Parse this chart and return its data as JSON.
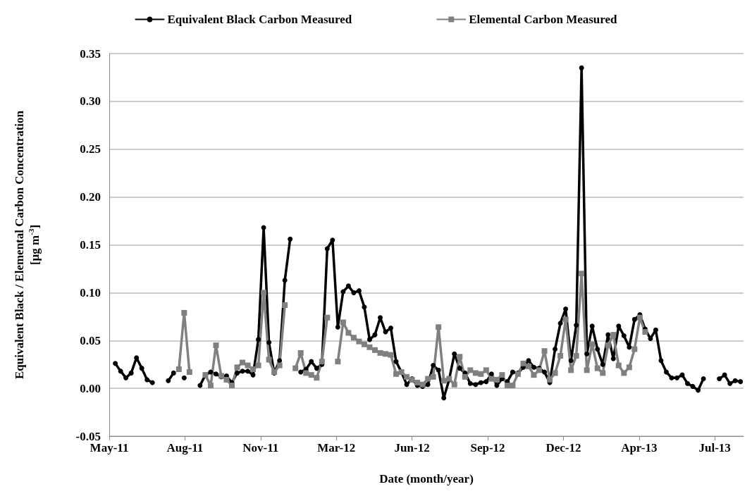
{
  "chart_data": {
    "type": "line",
    "xlabel": "Date (month/year)",
    "ylabel": "Equivalent Black / Elemental Carbon Concentration\n[µg m$^{-3}$]",
    "x": [
      "2011-05-16",
      "2011-05-23",
      "2011-05-30",
      "2011-06-06",
      "2011-06-13",
      "2011-06-20",
      "2011-06-27",
      "2011-07-04",
      "2011-07-11",
      "2011-07-18",
      "2011-07-25",
      "2011-08-01",
      "2011-08-08",
      "2011-08-15",
      "2011-08-22",
      "2011-08-29",
      "2011-09-05",
      "2011-09-12",
      "2011-09-19",
      "2011-09-26",
      "2011-10-03",
      "2011-10-10",
      "2011-10-17",
      "2011-10-24",
      "2011-10-31",
      "2011-11-07",
      "2011-11-14",
      "2011-11-21",
      "2011-11-28",
      "2011-12-05",
      "2011-12-12",
      "2011-12-19",
      "2011-12-26",
      "2012-01-02",
      "2012-01-09",
      "2012-01-16",
      "2012-01-23",
      "2012-01-30",
      "2012-02-06",
      "2012-02-13",
      "2012-02-20",
      "2012-02-27",
      "2012-03-05",
      "2012-03-12",
      "2012-03-19",
      "2012-03-26",
      "2012-04-02",
      "2012-04-09",
      "2012-04-16",
      "2012-04-23",
      "2012-04-30",
      "2012-05-07",
      "2012-05-14",
      "2012-05-21",
      "2012-05-28",
      "2012-06-04",
      "2012-06-11",
      "2012-06-18",
      "2012-06-25",
      "2012-07-02",
      "2012-07-09",
      "2012-07-16",
      "2012-07-23",
      "2012-07-30",
      "2012-08-06",
      "2012-08-13",
      "2012-08-20",
      "2012-08-27",
      "2012-09-03",
      "2012-09-10",
      "2012-09-17",
      "2012-09-24",
      "2012-10-01",
      "2012-10-08",
      "2012-10-15",
      "2012-10-22",
      "2012-10-29",
      "2012-11-05",
      "2012-11-12",
      "2012-11-19",
      "2012-11-26",
      "2012-12-03",
      "2012-12-10",
      "2012-12-17",
      "2012-12-24",
      "2012-12-31",
      "2013-01-07",
      "2013-01-14",
      "2013-01-21",
      "2013-01-28",
      "2013-02-04",
      "2013-02-11",
      "2013-02-18",
      "2013-02-25",
      "2013-03-04",
      "2013-03-11",
      "2013-03-18",
      "2013-03-25",
      "2013-04-01",
      "2013-04-08",
      "2013-04-15",
      "2013-04-22",
      "2013-04-29",
      "2013-05-06",
      "2013-05-13",
      "2013-05-20",
      "2013-05-27",
      "2013-06-03",
      "2013-06-10",
      "2013-06-17",
      "2013-06-24",
      "2013-07-01",
      "2013-07-08",
      "2013-07-15",
      "2013-07-22",
      "2013-07-29",
      "2013-08-05",
      "2013-08-12",
      "2013-08-19"
    ],
    "series": [
      {
        "name": "Equivalent Black Carbon Measured",
        "color": "#000000",
        "marker": "circle",
        "values": [
          0.026,
          0.018,
          0.011,
          0.016,
          0.032,
          0.021,
          0.009,
          0.006,
          null,
          null,
          0.008,
          0.016,
          null,
          0.011,
          null,
          null,
          0.003,
          0.014,
          0.017,
          0.015,
          0.012,
          0.013,
          0.006,
          0.016,
          0.018,
          0.018,
          0.014,
          0.051,
          0.168,
          0.048,
          0.016,
          0.029,
          0.113,
          0.156,
          null,
          0.017,
          0.02,
          0.028,
          0.021,
          0.025,
          0.146,
          0.155,
          0.064,
          0.101,
          0.107,
          0.1,
          0.102,
          0.085,
          0.051,
          0.056,
          0.074,
          0.059,
          0.063,
          0.028,
          0.017,
          0.004,
          0.01,
          0.003,
          0.002,
          0.004,
          0.024,
          0.019,
          -0.01,
          0.009,
          0.036,
          0.021,
          0.016,
          0.005,
          0.004,
          0.006,
          0.007,
          0.015,
          0.003,
          0.01,
          0.007,
          0.017,
          0.016,
          0.022,
          0.029,
          0.022,
          0.021,
          0.017,
          0.006,
          0.041,
          0.068,
          0.083,
          0.029,
          0.066,
          0.335,
          0.036,
          0.065,
          0.041,
          0.025,
          0.056,
          0.031,
          0.065,
          0.055,
          0.043,
          0.072,
          0.077,
          0.062,
          0.052,
          0.061,
          0.029,
          0.017,
          0.011,
          0.011,
          0.014,
          0.005,
          0.002,
          -0.002,
          0.01,
          null,
          null,
          0.01,
          0.014,
          0.005,
          0.008,
          0.007
        ]
      },
      {
        "name": "Elemental Carbon Measured",
        "color": "#808080",
        "marker": "square",
        "values": [
          null,
          null,
          null,
          null,
          null,
          null,
          null,
          null,
          null,
          null,
          null,
          null,
          0.02,
          0.079,
          0.017,
          null,
          null,
          0.014,
          0.003,
          0.045,
          0.013,
          0.009,
          0.003,
          0.022,
          0.027,
          0.024,
          0.02,
          0.024,
          0.1,
          0.03,
          0.017,
          0.024,
          0.087,
          null,
          0.021,
          0.037,
          0.016,
          0.014,
          0.011,
          0.028,
          0.074,
          null,
          0.028,
          0.069,
          0.058,
          0.053,
          0.049,
          0.046,
          0.043,
          0.04,
          0.037,
          0.036,
          0.035,
          0.015,
          0.017,
          0.012,
          0.009,
          0.006,
          0.004,
          0.01,
          0.012,
          0.064,
          0.008,
          0.01,
          0.004,
          0.033,
          0.012,
          0.019,
          0.016,
          0.015,
          0.019,
          0.01,
          0.009,
          0.014,
          0.003,
          0.003,
          0.015,
          0.026,
          0.023,
          0.014,
          0.019,
          0.039,
          0.009,
          0.016,
          0.034,
          0.072,
          0.019,
          0.034,
          0.12,
          0.019,
          0.046,
          0.021,
          0.016,
          0.045,
          0.056,
          0.024,
          0.016,
          0.022,
          0.041,
          0.074,
          0.059,
          null,
          null,
          null,
          null,
          null,
          null,
          null,
          null,
          null,
          null,
          null,
          null,
          null,
          null,
          null,
          null,
          null,
          null
        ]
      }
    ],
    "xlim": [
      "2011-05-08",
      "2013-08-23"
    ],
    "xticks": [
      {
        "value": "2011-05-08",
        "label": "May-11"
      },
      {
        "value": "2011-08-16",
        "label": "Aug-11"
      },
      {
        "value": "2011-11-24",
        "label": "Nov-11"
      },
      {
        "value": "2012-03-03",
        "label": "Mar-12"
      },
      {
        "value": "2012-06-11",
        "label": "Jun-12"
      },
      {
        "value": "2012-09-19",
        "label": "Sep-12"
      },
      {
        "value": "2012-12-28",
        "label": "Dec-12"
      },
      {
        "value": "2013-04-07",
        "label": "Apr-13"
      },
      {
        "value": "2013-07-16",
        "label": "Jul-13"
      }
    ],
    "ylim": [
      -0.05,
      0.35
    ],
    "yticks": [
      {
        "value": -0.05,
        "label": "-0.05"
      },
      {
        "value": 0,
        "label": "0.00"
      },
      {
        "value": 0.05,
        "label": "0.05"
      },
      {
        "value": 0.1,
        "label": "0.10"
      },
      {
        "value": 0.15,
        "label": "0.15"
      },
      {
        "value": 0.2,
        "label": "0.20"
      },
      {
        "value": 0.25,
        "label": "0.25"
      },
      {
        "value": 0.3,
        "label": "0.30"
      },
      {
        "value": 0.35,
        "label": "0.35"
      }
    ],
    "grid": "y",
    "legend": "top",
    "line_style": "solid"
  }
}
